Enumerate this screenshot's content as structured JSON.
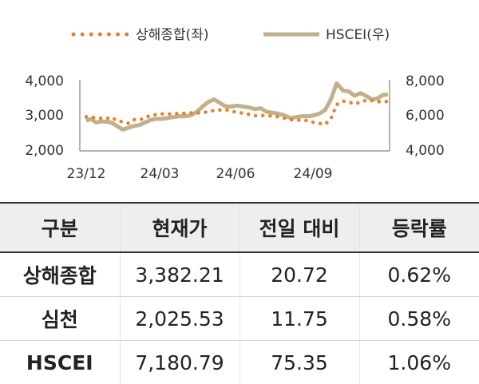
{
  "chart_data": {
    "type": "line",
    "legend": {
      "placement": "top"
    },
    "x_ticks": [
      "23/12",
      "24/03",
      "24/06",
      "24/09"
    ],
    "x_range": [
      "23/12",
      "24/12"
    ],
    "y_left": {
      "range": [
        2000,
        4000
      ],
      "ticks": [
        "2,000",
        "3,000",
        "4,000"
      ]
    },
    "y_right": {
      "range": [
        4000,
        8000
      ],
      "ticks": [
        "4,000",
        "6,000",
        "8,000"
      ]
    },
    "series": [
      {
        "name": "상해종합(좌)",
        "axis": "left",
        "style": "dotted",
        "color": "#E8822A",
        "x": [
          "2023-12-01",
          "2023-12-07",
          "2023-12-13",
          "2023-12-19",
          "2023-12-25",
          "2024-01-01",
          "2024-01-08",
          "2024-01-15",
          "2024-01-22",
          "2024-01-29",
          "2024-02-05",
          "2024-02-12",
          "2024-02-19",
          "2024-02-26",
          "2024-03-04",
          "2024-03-11",
          "2024-03-18",
          "2024-03-25",
          "2024-04-01",
          "2024-04-08",
          "2024-04-15",
          "2024-04-22",
          "2024-04-29",
          "2024-05-06",
          "2024-05-13",
          "2024-05-20",
          "2024-05-27",
          "2024-06-03",
          "2024-06-10",
          "2024-06-17",
          "2024-06-24",
          "2024-07-01",
          "2024-07-08",
          "2024-07-15",
          "2024-07-22",
          "2024-07-29",
          "2024-08-05",
          "2024-08-12",
          "2024-08-19",
          "2024-08-26",
          "2024-09-02",
          "2024-09-09",
          "2024-09-16",
          "2024-09-23",
          "2024-09-30",
          "2024-10-08",
          "2024-10-15",
          "2024-10-22",
          "2024-10-29",
          "2024-11-05",
          "2024-11-12",
          "2024-11-19",
          "2024-11-26",
          "2024-12-03"
        ],
        "values": [
          2960,
          2950,
          2930,
          2920,
          2900,
          2950,
          2850,
          2820,
          2780,
          2880,
          2870,
          2930,
          3010,
          3020,
          3040,
          3030,
          3060,
          3040,
          3060,
          3070,
          3060,
          3080,
          3100,
          3140,
          3150,
          3160,
          3120,
          3080,
          3060,
          3030,
          2990,
          3000,
          2990,
          2980,
          2960,
          2920,
          2880,
          2870,
          2860,
          2850,
          2800,
          2770,
          2750,
          2900,
          3300,
          3400,
          3380,
          3320,
          3370,
          3420,
          3420,
          3380,
          3400,
          3380
        ]
      },
      {
        "name": "HSCEI(우)",
        "axis": "right",
        "style": "solid",
        "color": "#C2B08A",
        "x": [
          "2023-12-01",
          "2023-12-07",
          "2023-12-13",
          "2023-12-19",
          "2023-12-25",
          "2024-01-01",
          "2024-01-08",
          "2024-01-15",
          "2024-01-22",
          "2024-01-29",
          "2024-02-05",
          "2024-02-12",
          "2024-02-19",
          "2024-02-26",
          "2024-03-04",
          "2024-03-11",
          "2024-03-18",
          "2024-03-25",
          "2024-04-01",
          "2024-04-08",
          "2024-04-15",
          "2024-04-22",
          "2024-04-29",
          "2024-05-06",
          "2024-05-13",
          "2024-05-20",
          "2024-05-27",
          "2024-06-03",
          "2024-06-10",
          "2024-06-17",
          "2024-06-24",
          "2024-07-01",
          "2024-07-08",
          "2024-07-15",
          "2024-07-22",
          "2024-07-29",
          "2024-08-05",
          "2024-08-12",
          "2024-08-19",
          "2024-08-26",
          "2024-09-02",
          "2024-09-09",
          "2024-09-16",
          "2024-09-23",
          "2024-09-30",
          "2024-10-08",
          "2024-10-15",
          "2024-10-22",
          "2024-10-29",
          "2024-11-05",
          "2024-11-12",
          "2024-11-19",
          "2024-11-26",
          "2024-12-03"
        ],
        "values": [
          5700,
          5800,
          5600,
          5650,
          5650,
          5600,
          5400,
          5200,
          5300,
          5400,
          5450,
          5600,
          5750,
          5800,
          5800,
          5850,
          5900,
          5950,
          5950,
          6000,
          6200,
          6500,
          6750,
          6900,
          6700,
          6500,
          6500,
          6550,
          6500,
          6450,
          6350,
          6400,
          6200,
          6150,
          6100,
          6000,
          5850,
          5900,
          5950,
          5950,
          6000,
          6100,
          6300,
          6900,
          7800,
          7400,
          7350,
          7100,
          7250,
          7100,
          6900,
          6950,
          7150,
          7180.79
        ]
      }
    ]
  },
  "table": {
    "headers": [
      "구분",
      "현재가",
      "전일 대비",
      "등락률"
    ],
    "rows": [
      [
        "상해종합",
        "3,382.21",
        "20.72",
        "0.62%"
      ],
      [
        "심천",
        "2,025.53",
        "11.75",
        "0.58%"
      ],
      [
        "HSCEI",
        "7,180.79",
        "75.35",
        "1.06%"
      ]
    ]
  }
}
